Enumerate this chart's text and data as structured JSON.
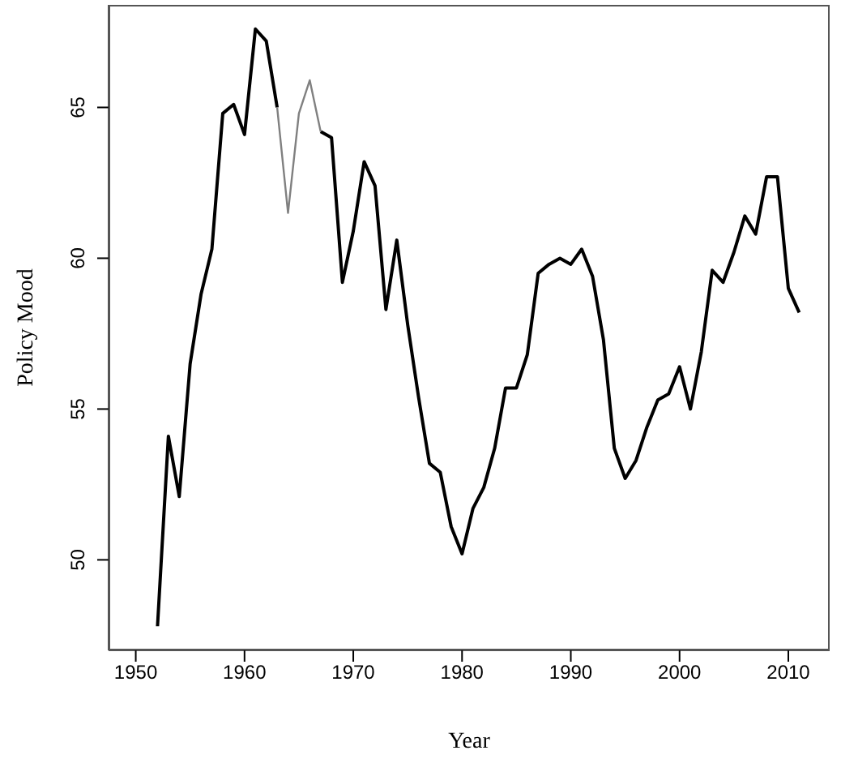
{
  "chart_data": {
    "type": "line",
    "xlabel": "Year",
    "ylabel": "Policy Mood",
    "x": [
      1952,
      1953,
      1954,
      1955,
      1956,
      1957,
      1958,
      1959,
      1960,
      1961,
      1962,
      1963,
      1964,
      1965,
      1966,
      1967,
      1968,
      1969,
      1970,
      1971,
      1972,
      1973,
      1974,
      1975,
      1976,
      1977,
      1978,
      1979,
      1980,
      1981,
      1982,
      1983,
      1984,
      1985,
      1986,
      1987,
      1988,
      1989,
      1990,
      1991,
      1992,
      1993,
      1994,
      1995,
      1996,
      1997,
      1998,
      1999,
      2000,
      2001,
      2002,
      2003,
      2004,
      2005,
      2006,
      2007,
      2008,
      2009,
      2010,
      2011
    ],
    "series": [
      {
        "color": "#000000",
        "values": [
          47.8,
          54.1,
          52.1,
          56.5,
          58.8,
          60.3,
          64.8,
          65.1,
          64.1,
          67.6,
          67.2,
          65.0,
          null,
          null,
          null,
          64.2,
          64.0,
          59.2,
          60.9,
          63.2,
          62.4,
          58.3,
          60.6,
          57.8,
          55.4,
          53.2,
          52.9,
          51.1,
          50.2,
          51.7,
          52.4,
          53.7,
          55.7,
          55.7,
          56.8,
          59.5,
          59.8,
          60.0,
          59.8,
          60.3,
          59.4,
          57.3,
          53.7,
          52.7,
          53.3,
          54.4,
          55.3,
          55.5,
          56.4,
          55.0,
          56.9,
          59.6,
          59.2,
          60.2,
          61.4,
          60.8,
          62.7,
          62.7,
          59.0,
          58.2
        ]
      },
      {
        "color": "#808080",
        "values": [
          null,
          null,
          null,
          null,
          null,
          null,
          null,
          null,
          null,
          null,
          null,
          65.0,
          61.5,
          64.8,
          65.9,
          64.2,
          null,
          null,
          null,
          null,
          null,
          null,
          null,
          null,
          null,
          null,
          null,
          null,
          null,
          null,
          null,
          null,
          null,
          null,
          null,
          null,
          null,
          null,
          null,
          null,
          null,
          null,
          null,
          null,
          null,
          null,
          null,
          null,
          null,
          null,
          null,
          null,
          null,
          null,
          null,
          null,
          null,
          null,
          null,
          null
        ]
      }
    ],
    "xlim": [
      1947.5,
      2013.8
    ],
    "xticks": [
      1950,
      1960,
      1970,
      1980,
      1990,
      2000,
      2010
    ],
    "ylim": [
      47,
      68.4
    ],
    "yticks": [
      50,
      55,
      60,
      65
    ]
  }
}
